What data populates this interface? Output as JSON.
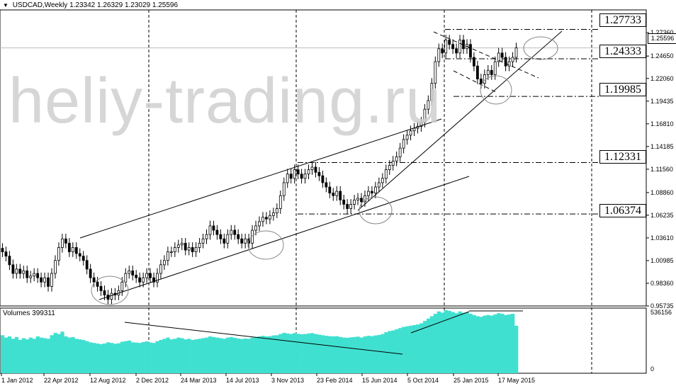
{
  "header": {
    "symbol_line": "USDCAD,Weekly  1.23342 1.26329 1.23029 1.25596",
    "icon": "triangle-down-icon"
  },
  "watermark": "heliy-trading.ru",
  "volume_label": "Volumes 399311",
  "current_price": "1.25596",
  "levels": [
    {
      "label": "1.27733"
    },
    {
      "label": "1.24333"
    },
    {
      "label": "1.19985"
    },
    {
      "label": "1.12331"
    },
    {
      "label": "1.06374"
    }
  ],
  "colors": {
    "background": "#ffffff",
    "candles": "#000000",
    "volume_bars": "#40e0d0",
    "grid": "#000000",
    "watermark": "#cfcfcf"
  },
  "chart_data": [
    {
      "type": "candlestick",
      "title": "USDCAD,Weekly",
      "ohlc_last": {
        "open": 1.23342,
        "high": 1.26329,
        "low": 1.23029,
        "close": 1.25596
      },
      "y_ticks": [
        "1.27360",
        "1.24650",
        "1.22060",
        "1.19435",
        "1.16810",
        "1.14185",
        "1.11560",
        "1.08860",
        "1.06235",
        "1.03610",
        "1.00985",
        "0.98360",
        "0.95735"
      ],
      "ylim": [
        0.95735,
        1.2999
      ],
      "x_ticks": [
        "1 Jan 2012",
        "22 Apr 2012",
        "12 Aug 2012",
        "2 Dec 2012",
        "24 Mar 2013",
        "14 Jul 2013",
        "3 Nov 2013",
        "23 Feb 2014",
        "15 Jun 2014",
        "5 Oct 2014",
        "25 Jan 2015",
        "17 May 2015"
      ],
      "grid": false,
      "horizontal_levels": [
        1.27733,
        1.24333,
        1.19985,
        1.12331,
        1.06374
      ],
      "closes": [
        1.02,
        1.015,
        1.005,
        0.995,
        1.0,
        0.995,
        0.998,
        0.99,
        0.992,
        0.995,
        0.99,
        0.985,
        0.99,
        0.98,
        0.995,
        1.01,
        1.025,
        1.035,
        1.03,
        1.02,
        1.025,
        1.018,
        1.015,
        1.01,
        1.0,
        0.99,
        0.985,
        0.98,
        0.975,
        0.97,
        0.965,
        0.972,
        0.97,
        0.975,
        0.985,
        0.995,
        0.998,
        0.993,
        0.99,
        0.985,
        0.99,
        0.995,
        0.99,
        0.985,
        0.995,
        1.005,
        1.01,
        1.02,
        1.02,
        1.025,
        1.028,
        1.03,
        1.022,
        1.025,
        1.02,
        1.025,
        1.03,
        1.035,
        1.04,
        1.05,
        1.045,
        1.04,
        1.035,
        1.03,
        1.04,
        1.045,
        1.04,
        1.035,
        1.03,
        1.035,
        1.03,
        1.045,
        1.05,
        1.055,
        1.06,
        1.058,
        1.062,
        1.065,
        1.07,
        1.085,
        1.1,
        1.11,
        1.105,
        1.115,
        1.11,
        1.105,
        1.11,
        1.115,
        1.118,
        1.112,
        1.108,
        1.1,
        1.095,
        1.088,
        1.085,
        1.09,
        1.08,
        1.075,
        1.07,
        1.075,
        1.08,
        1.082,
        1.078,
        1.085,
        1.09,
        1.088,
        1.095,
        1.1,
        1.105,
        1.115,
        1.12,
        1.125,
        1.13,
        1.14,
        1.15,
        1.155,
        1.16,
        1.163,
        1.165,
        1.17,
        1.185,
        1.195,
        1.215,
        1.24,
        1.255,
        1.25,
        1.265,
        1.26,
        1.255,
        1.25,
        1.265,
        1.255,
        1.26,
        1.245,
        1.235,
        1.22,
        1.215,
        1.225,
        1.23,
        1.225,
        1.24,
        1.25,
        1.245,
        1.235,
        1.24,
        1.245,
        1.25596
      ]
    },
    {
      "type": "bar",
      "title": "Volumes 399311",
      "y_ticks": [
        "536156",
        "0"
      ],
      "ylim": [
        0,
        536156
      ],
      "values": [
        320000,
        300000,
        310000,
        290000,
        305000,
        280000,
        295000,
        285000,
        300000,
        290000,
        310000,
        300000,
        295000,
        290000,
        320000,
        340000,
        330000,
        350000,
        310000,
        300000,
        305000,
        290000,
        285000,
        280000,
        270000,
        260000,
        255000,
        250000,
        245000,
        250000,
        260000,
        255000,
        248000,
        252000,
        265000,
        270000,
        275000,
        260000,
        258000,
        255000,
        262000,
        268000,
        258000,
        255000,
        270000,
        280000,
        290000,
        300000,
        285000,
        290000,
        300000,
        295000,
        285000,
        290000,
        280000,
        285000,
        290000,
        295000,
        300000,
        310000,
        305000,
        300000,
        295000,
        290000,
        300000,
        305000,
        298000,
        292000,
        288000,
        292000,
        290000,
        300000,
        305000,
        310000,
        315000,
        310000,
        312000,
        318000,
        320000,
        330000,
        340000,
        335000,
        330000,
        338000,
        332000,
        328000,
        330000,
        335000,
        338000,
        330000,
        325000,
        320000,
        315000,
        312000,
        310000,
        312000,
        305000,
        300000,
        298000,
        302000,
        305000,
        308000,
        300000,
        310000,
        315000,
        312000,
        318000,
        322000,
        330000,
        345000,
        355000,
        360000,
        370000,
        380000,
        390000,
        395000,
        400000,
        405000,
        410000,
        420000,
        440000,
        460000,
        480000,
        500000,
        520000,
        510000,
        530000,
        525000,
        515000,
        505000,
        520000,
        510000,
        515000,
        500000,
        490000,
        480000,
        475000,
        485000,
        490000,
        485000,
        495000,
        505000,
        500000,
        490000,
        495000,
        500000,
        399311
      ]
    }
  ]
}
